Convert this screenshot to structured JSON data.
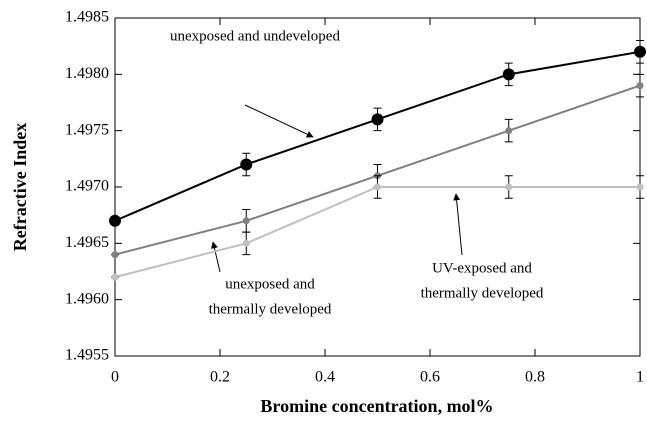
{
  "chart_data": {
    "type": "line",
    "xlabel": "Bromine concentration, mol%",
    "ylabel": "Refractive Index",
    "xlim": [
      0,
      1
    ],
    "xticks": [
      0,
      0.2,
      0.4,
      0.6,
      0.8,
      1
    ],
    "ylim": [
      1.4955,
      1.4985
    ],
    "yticks": [
      1.4955,
      {
        "value": 1.496,
        "label": "1.4960"
      },
      1.4965,
      {
        "value": 1.497,
        "label": "1.4970"
      },
      1.4975,
      {
        "value": 1.498,
        "label": "1.4980"
      },
      1.4985
    ],
    "x": [
      0,
      0.25,
      0.5,
      0.75,
      1
    ],
    "series": [
      {
        "color": "#000000",
        "values": [
          1.4967,
          1.4972,
          1.4976,
          1.498,
          1.4982
        ],
        "errors": [
          0,
          0.0001,
          0.0001,
          0.0001,
          0.0001
        ]
      },
      {
        "color": "#808080",
        "values": [
          1.4964,
          1.4967,
          1.4971,
          1.4975,
          1.4979
        ],
        "errors": [
          0,
          0.0001,
          0.0001,
          0.0001,
          0.0001
        ]
      },
      {
        "color": "#c0c0c0",
        "values": [
          1.4962,
          1.4965,
          1.497,
          1.497,
          1.497
        ],
        "errors": [
          0,
          0.0001,
          0.0001,
          0.0001,
          0.0001
        ]
      }
    ],
    "annotations": [
      {
        "lines": [
          "unexposed and undeveloped"
        ]
      },
      {
        "lines": [
          "UV-exposed and",
          "thermally developed"
        ]
      },
      {
        "lines": [
          "unexposed and",
          "thermally developed"
        ]
      }
    ]
  }
}
